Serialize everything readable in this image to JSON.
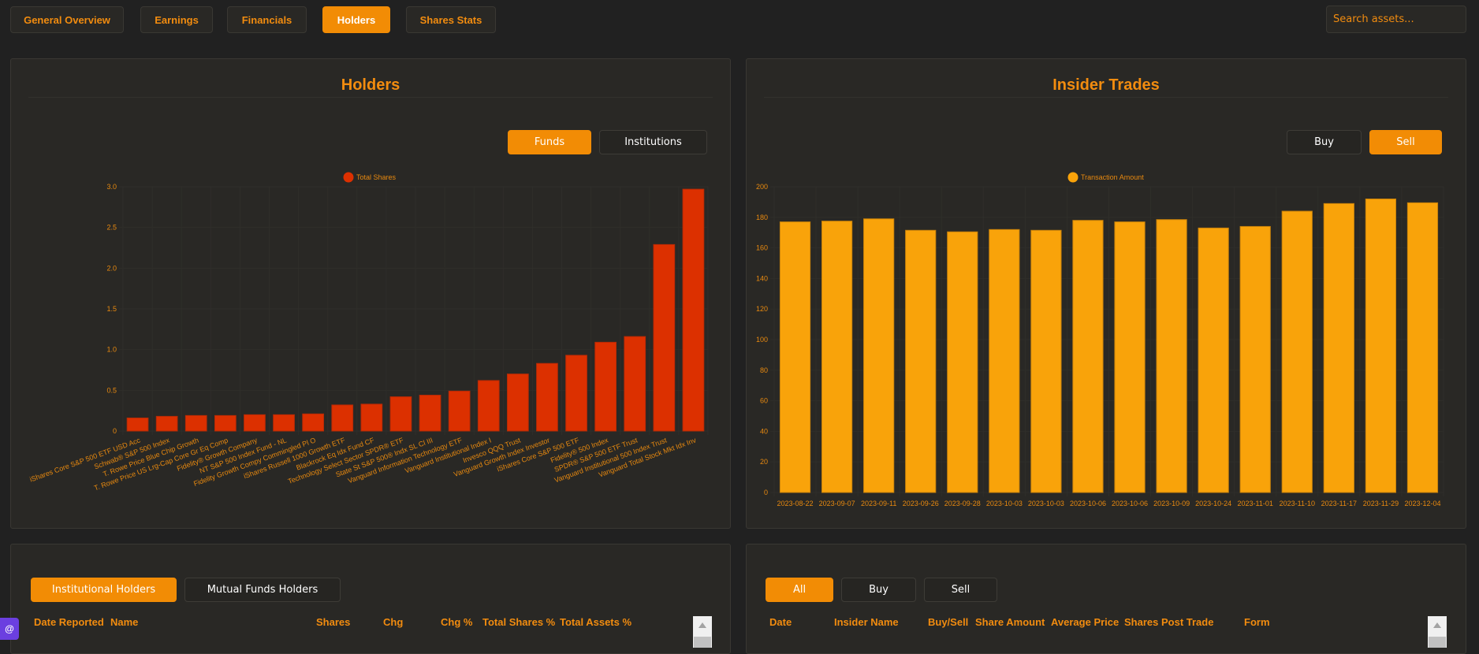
{
  "nav": {
    "tabs": [
      {
        "label": "General Overview",
        "active": false
      },
      {
        "label": "Earnings",
        "active": false
      },
      {
        "label": "Financials",
        "active": false
      },
      {
        "label": "Holders",
        "active": true
      },
      {
        "label": "Shares Stats",
        "active": false
      }
    ],
    "search_placeholder": "Search assets..."
  },
  "holders_panel": {
    "title": "Holders",
    "toggles": [
      {
        "label": "Funds",
        "active": true
      },
      {
        "label": "Institutions",
        "active": false
      }
    ]
  },
  "insider_panel": {
    "title": "Insider Trades",
    "toggles": [
      {
        "label": "Buy",
        "active": false
      },
      {
        "label": "Sell",
        "active": true
      }
    ]
  },
  "holders_table": {
    "tabs": [
      {
        "label": "Institutional Holders",
        "active": true
      },
      {
        "label": "Mutual Funds Holders",
        "active": false
      }
    ],
    "columns": [
      "Date Reported",
      "Name",
      "Shares",
      "Chg",
      "Chg %",
      "Total Shares %",
      "Total Assets %"
    ]
  },
  "insider_table": {
    "tabs": [
      {
        "label": "All",
        "active": true
      },
      {
        "label": "Buy",
        "active": false
      },
      {
        "label": "Sell",
        "active": false
      }
    ],
    "columns": [
      "Date",
      "Insider Name",
      "Buy/Sell",
      "Share Amount",
      "Average Price",
      "Shares Post Trade",
      "Form"
    ]
  },
  "fab_label": "@",
  "colors": {
    "accent": "#f28c05",
    "holders_bar": "#dc3000",
    "insider_bar": "#f9a30a",
    "panel_bg": "#292825",
    "page_bg": "#212121"
  },
  "chart_data": [
    {
      "type": "bar",
      "title": "Holders",
      "legend": [
        "Total Shares"
      ],
      "legend_position": "top-center",
      "ylim": [
        0,
        3.0
      ],
      "yticks": [
        "0",
        "0.5",
        "1.0",
        "1.5",
        "2.0",
        "2.5",
        "3.0"
      ],
      "grid": true,
      "categories": [
        "iShares Core S&P 500 ETF USD Acc",
        "Schwab® S&P 500 Index",
        "T. Rowe Price Blue Chip Growth",
        "T. Rowe Price US Lrg-Cap Core Gr Eq Comp",
        "Fidelity® Growth Company",
        "NT S&P 500 Index Fund - NL",
        "Fidelity Growth Compy Commingled Pl O",
        "iShares Russell 1000 Growth ETF",
        "Blackrock Eq Idx Fund CF",
        "Technology Select Sector SPDR® ETF",
        "State St S&P 500® Indx SL Cl III",
        "Vanguard Information Technology ETF",
        "Vanguard Institutional Index I",
        "Invesco QQQ Trust",
        "Vanguard Growth Index Investor",
        "iShares Core S&P 500 ETF",
        "Fidelity® 500 Index",
        "SPDR® S&P 500 ETF Trust",
        "Vanguard Institutional 500 Index Trust",
        "Vanguard Total Stock Mkt Idx Inv"
      ],
      "values": [
        0.16,
        0.18,
        0.19,
        0.19,
        0.2,
        0.2,
        0.21,
        0.32,
        0.33,
        0.42,
        0.44,
        0.49,
        0.62,
        0.7,
        0.83,
        0.93,
        1.09,
        1.16,
        2.29,
        2.97
      ]
    },
    {
      "type": "bar",
      "title": "Insider Trades",
      "legend": [
        "Transaction Amount"
      ],
      "legend_position": "top-center",
      "ylim": [
        0,
        200
      ],
      "yticks": [
        "0",
        "20",
        "40",
        "60",
        "80",
        "100",
        "120",
        "140",
        "160",
        "180",
        "200"
      ],
      "grid": true,
      "categories": [
        "2023-08-22",
        "2023-09-07",
        "2023-09-11",
        "2023-09-26",
        "2023-09-28",
        "2023-10-03",
        "2023-10-03",
        "2023-10-06",
        "2023-10-06",
        "2023-10-09",
        "2023-10-24",
        "2023-11-01",
        "2023-11-10",
        "2023-11-17",
        "2023-11-29",
        "2023-12-04"
      ],
      "values": [
        177,
        177.5,
        179,
        171.5,
        170.5,
        172,
        171.5,
        178,
        177,
        178.5,
        173,
        174,
        184,
        189,
        192,
        189.5
      ]
    }
  ]
}
